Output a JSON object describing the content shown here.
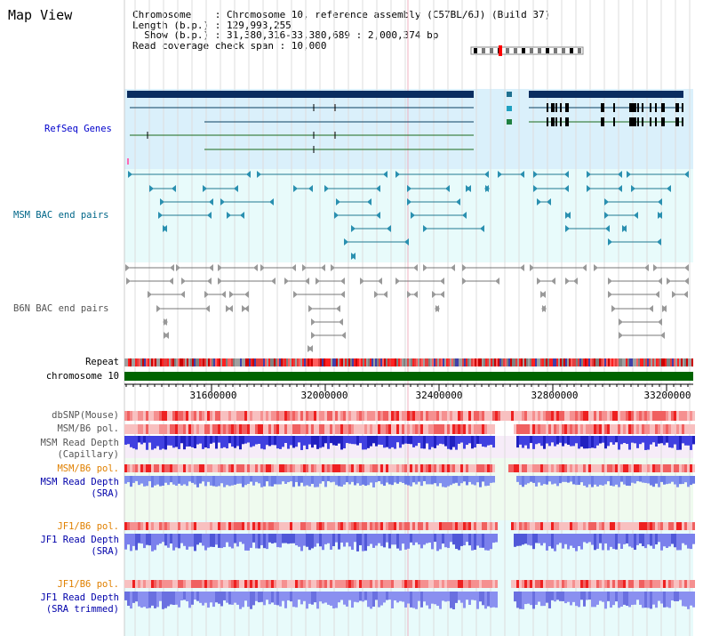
{
  "title": "Map View",
  "info": {
    "chromosome": "Chromosome    : Chromosome 10, reference assembly (C57BL/6J) (Build 37)",
    "length": "Length (b.p.) : 129,993,255",
    "show": "  Show (b.p.) : 31,380,316-33,380,689 : 2,000,374 bp",
    "read_span": "Read coverage check span : 10,000"
  },
  "tracks": {
    "refseq": "RefSeq Genes",
    "msm_bac": "MSM BAC end pairs",
    "b6n_bac": "B6N BAC end pairs",
    "repeat": "Repeat",
    "chromosome": "chromosome 10",
    "dbsnp": "dbSNP(Mouse)",
    "msm_pol_1": "MSM/B6 pol.",
    "msm_depth_cap_1": "MSM Read Depth",
    "msm_depth_cap_2": "(Capillary)",
    "msm_pol_2": "MSM/B6 pol.",
    "msm_depth_sra_1": "MSM Read Depth",
    "msm_depth_sra_2": "(SRA)",
    "jf1_pol_1": "JF1/B6 pol.",
    "jf1_depth_sra_1": "JF1 Read Depth",
    "jf1_depth_sra_2": "(SRA)",
    "jf1_pol_2": "JF1/B6 pol.",
    "jf1_depth_trim_1": "JF1 Read Depth",
    "jf1_depth_trim_2": "(SRA trimmed)"
  },
  "axis": {
    "ticks": [
      "31600000",
      "32000000",
      "32400000",
      "32800000",
      "33200000"
    ]
  },
  "colors": {
    "refseq_label": "#0000cc",
    "msm_bac_label": "#006688",
    "b6n_label": "#555555",
    "pol_label_msm": "#e08000",
    "depth_label": "#0000aa",
    "gene_dark": "#0a2d60",
    "chromosome_bar": "#006400"
  }
}
